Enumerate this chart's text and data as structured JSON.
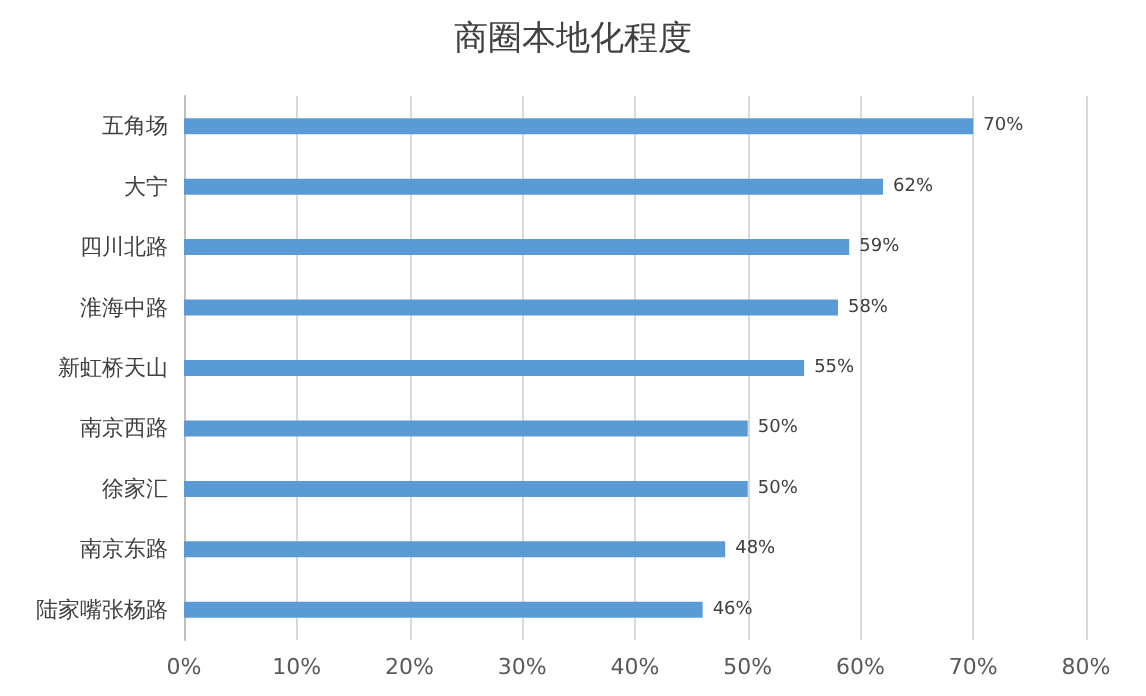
{
  "chart_data": {
    "type": "bar",
    "orientation": "horizontal",
    "title": "商圈本地化程度",
    "categories": [
      "五角场",
      "大宁",
      "四川北路",
      "淮海中路",
      "新虹桥天山",
      "南京西路",
      "徐家汇",
      "南京东路",
      "陆家嘴张杨路"
    ],
    "values": [
      70,
      62,
      59,
      58,
      55,
      50,
      50,
      48,
      46
    ],
    "value_labels": [
      "70%",
      "62%",
      "59%",
      "58%",
      "55%",
      "50%",
      "50%",
      "48%",
      "46%"
    ],
    "color": "#5b9bd5",
    "xlim": [
      0,
      80
    ],
    "xticks": [
      {
        "value": 0,
        "label": "0%"
      },
      {
        "value": 10,
        "label": "10%"
      },
      {
        "value": 20,
        "label": "20%"
      },
      {
        "value": 30,
        "label": "30%"
      },
      {
        "value": 40,
        "label": "40%"
      },
      {
        "value": 50,
        "label": "50%"
      },
      {
        "value": 60,
        "label": "60%"
      },
      {
        "value": 70,
        "label": "70%"
      },
      {
        "value": 80,
        "label": "80%"
      }
    ],
    "grid": "x"
  }
}
